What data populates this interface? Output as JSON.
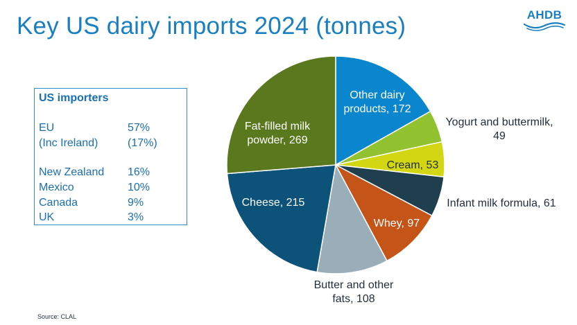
{
  "title": "Key US dairy imports 2024 (tonnes)",
  "logo": {
    "text": "AHDB",
    "color": "#1a7fc1"
  },
  "importers": {
    "heading": "US importers",
    "rows": [
      {
        "country": "EU",
        "share": "57%"
      },
      {
        "country": "(Inc Ireland)",
        "share": "(17%)"
      },
      {
        "country": "New Zealand",
        "share": "16%"
      },
      {
        "country": "Mexico",
        "share": "10%"
      },
      {
        "country": "Canada",
        "share": "9%"
      },
      {
        "country": "UK",
        "share": "3%"
      }
    ]
  },
  "source": "Source: CLAL",
  "chart_data": {
    "type": "pie",
    "title": "Key US dairy imports 2024 (tonnes)",
    "legend": "none",
    "slices": [
      {
        "label": "Other dairy products",
        "value": 172,
        "color": "#0a86cf"
      },
      {
        "label": "Yogurt and buttermilk",
        "value": 49,
        "color": "#93c231"
      },
      {
        "label": "Cream",
        "value": 53,
        "color": "#d3d713"
      },
      {
        "label": "Infant milk formula",
        "value": 61,
        "color": "#1f3f4f"
      },
      {
        "label": "Whey",
        "value": 97,
        "color": "#c55418"
      },
      {
        "label": "Butter and other fats",
        "value": 108,
        "color": "#9aaeb9"
      },
      {
        "label": "Cheese",
        "value": 215,
        "color": "#0c5279"
      },
      {
        "label": "Fat-filled milk powder",
        "value": 269,
        "color": "#5a781d"
      }
    ]
  }
}
